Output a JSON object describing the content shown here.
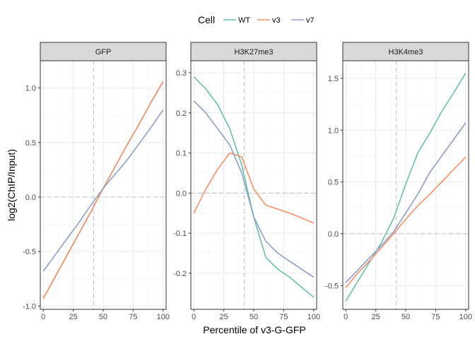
{
  "chart_data": {
    "type": "line",
    "legend": {
      "title": "Cell",
      "position": "top",
      "entries": [
        {
          "name": "WT",
          "color": "#66c2a5"
        },
        {
          "name": "v3",
          "color": "#fc8d62"
        },
        {
          "name": "v7",
          "color": "#8da0cb"
        }
      ]
    },
    "xlabel": "Percentile of v3-G-GFP",
    "ylabel": "log2(ChIP/Input)",
    "grid": true,
    "xlim": [
      -2.5,
      102.5
    ],
    "xticks": [
      0,
      25,
      50,
      75,
      100
    ],
    "xtick_labels": [
      "0",
      "25",
      "50",
      "75",
      "100"
    ],
    "reference_lines": {
      "x": 42,
      "y": 0
    },
    "panels": [
      {
        "title": "GFP",
        "ylim": [
          -1.03,
          1.25
        ],
        "yticks": [
          -1.0,
          -0.5,
          0.0,
          0.5,
          1.0
        ],
        "ytick_labels": [
          "-1.0",
          "-0.5",
          "0.0",
          "0.5",
          "1.0"
        ],
        "series": [
          {
            "name": "WT",
            "x": [
              0,
              10,
              20,
              30,
              40,
              50,
              60,
              70,
              80,
              90,
              100
            ],
            "y": [
              -0.93,
              -0.73,
              -0.53,
              -0.33,
              -0.13,
              0.08,
              0.28,
              0.48,
              0.67,
              0.87,
              1.06
            ]
          },
          {
            "name": "v3",
            "x": [
              0,
              10,
              20,
              30,
              40,
              50,
              60,
              70,
              80,
              90,
              100
            ],
            "y": [
              -0.93,
              -0.73,
              -0.53,
              -0.33,
              -0.13,
              0.08,
              0.28,
              0.48,
              0.67,
              0.87,
              1.06
            ]
          },
          {
            "name": "v7",
            "x": [
              0,
              10,
              20,
              30,
              40,
              50,
              60,
              70,
              80,
              90,
              100
            ],
            "y": [
              -0.68,
              -0.53,
              -0.38,
              -0.23,
              -0.07,
              0.08,
              0.21,
              0.34,
              0.49,
              0.64,
              0.8
            ]
          }
        ]
      },
      {
        "title": "H3K27me3",
        "ylim": [
          -0.29,
          0.33
        ],
        "yticks": [
          -0.2,
          -0.1,
          0.0,
          0.1,
          0.2,
          0.3
        ],
        "ytick_labels": [
          "-0.2",
          "-0.1",
          "0.0",
          "0.1",
          "0.2",
          "0.3"
        ],
        "series": [
          {
            "name": "WT",
            "x": [
              0,
              10,
              20,
              30,
              40,
              50,
              60,
              70,
              80,
              90,
              100
            ],
            "y": [
              0.29,
              0.26,
              0.22,
              0.16,
              0.07,
              -0.06,
              -0.16,
              -0.19,
              -0.21,
              -0.235,
              -0.26
            ]
          },
          {
            "name": "v3",
            "x": [
              0,
              10,
              20,
              30,
              40,
              50,
              60,
              70,
              80,
              90,
              100
            ],
            "y": [
              -0.05,
              0.01,
              0.06,
              0.1,
              0.09,
              0.01,
              -0.03,
              -0.04,
              -0.05,
              -0.062,
              -0.075
            ]
          },
          {
            "name": "v7",
            "x": [
              0,
              10,
              20,
              30,
              40,
              50,
              60,
              70,
              80,
              90,
              100
            ],
            "y": [
              0.23,
              0.2,
              0.16,
              0.12,
              0.05,
              -0.06,
              -0.12,
              -0.15,
              -0.17,
              -0.19,
              -0.21
            ]
          }
        ]
      },
      {
        "title": "H3K4me3",
        "ylim": [
          -0.73,
          1.67
        ],
        "yticks": [
          -0.5,
          0.0,
          0.5,
          1.0,
          1.5
        ],
        "ytick_labels": [
          "-0.5",
          "0.0",
          "0.5",
          "1.0",
          "1.5"
        ],
        "series": [
          {
            "name": "WT",
            "x": [
              0,
              10,
              20,
              30,
              40,
              50,
              60,
              70,
              80,
              90,
              100
            ],
            "y": [
              -0.65,
              -0.46,
              -0.27,
              -0.08,
              0.15,
              0.48,
              0.78,
              0.97,
              1.18,
              1.36,
              1.55
            ]
          },
          {
            "name": "v3",
            "x": [
              0,
              10,
              20,
              30,
              40,
              50,
              60,
              70,
              80,
              90,
              100
            ],
            "y": [
              -0.52,
              -0.38,
              -0.26,
              -0.13,
              0.0,
              0.14,
              0.27,
              0.38,
              0.5,
              0.62,
              0.74
            ]
          },
          {
            "name": "v7",
            "x": [
              0,
              10,
              20,
              30,
              40,
              50,
              60,
              70,
              80,
              90,
              100
            ],
            "y": [
              -0.47,
              -0.35,
              -0.23,
              -0.11,
              0.02,
              0.2,
              0.38,
              0.59,
              0.75,
              0.91,
              1.07
            ]
          }
        ]
      }
    ]
  }
}
